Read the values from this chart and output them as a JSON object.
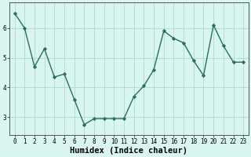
{
  "xlabel": "Humidex (Indice chaleur)",
  "ylabel": "",
  "x_values": [
    0,
    1,
    2,
    3,
    4,
    5,
    6,
    7,
    8,
    9,
    10,
    11,
    12,
    13,
    14,
    15,
    16,
    17,
    18,
    19,
    20,
    21,
    22,
    23
  ],
  "y_values": [
    6.5,
    6.0,
    4.7,
    5.3,
    4.35,
    4.45,
    3.6,
    2.75,
    2.95,
    2.95,
    2.95,
    2.95,
    3.7,
    4.05,
    4.6,
    5.9,
    5.65,
    5.5,
    4.9,
    4.4,
    6.1,
    5.4,
    4.85,
    4.85
  ],
  "line_color": "#2a6e62",
  "marker": "D",
  "marker_size": 2.2,
  "line_width": 1.0,
  "background_color": "#d8f5f0",
  "grid_color": "#aed9d2",
  "ylim": [
    2.4,
    6.85
  ],
  "xlim": [
    -0.5,
    23.5
  ],
  "yticks": [
    3,
    4,
    5,
    6
  ],
  "xticks": [
    0,
    1,
    2,
    3,
    4,
    5,
    6,
    7,
    8,
    9,
    10,
    11,
    12,
    13,
    14,
    15,
    16,
    17,
    18,
    19,
    20,
    21,
    22,
    23
  ],
  "tick_label_fontsize": 5.5,
  "xlabel_fontsize": 7.5,
  "spine_color": "#555555"
}
